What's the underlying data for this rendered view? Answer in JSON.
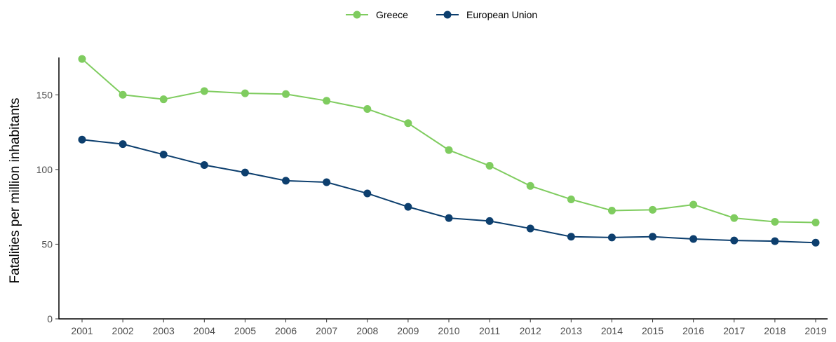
{
  "chart_data": {
    "type": "line",
    "title": "",
    "xlabel": "",
    "ylabel": "Fatalities per million inhabitants",
    "categories": [
      "2001",
      "2002",
      "2003",
      "2004",
      "2005",
      "2006",
      "2007",
      "2008",
      "2009",
      "2010",
      "2011",
      "2012",
      "2013",
      "2014",
      "2015",
      "2016",
      "2017",
      "2018",
      "2019"
    ],
    "series": [
      {
        "name": "Greece",
        "color": "#7fcc5f",
        "values": [
          174,
          150,
          147,
          152.5,
          151,
          150.5,
          146,
          140.5,
          131,
          113,
          102.5,
          89,
          80,
          72.5,
          73,
          76.5,
          67.5,
          65,
          64.5
        ]
      },
      {
        "name": "European Union",
        "color": "#0d3f6e",
        "values": [
          120,
          117,
          110,
          103,
          98,
          92.5,
          91.5,
          84,
          75,
          67.5,
          65.5,
          60.5,
          55,
          54.5,
          55,
          53.5,
          52.5,
          52,
          51
        ]
      }
    ],
    "ylim": [
      0,
      175
    ],
    "yticks": [
      0,
      50,
      100,
      150
    ],
    "grid": false,
    "legend_position": "top"
  }
}
